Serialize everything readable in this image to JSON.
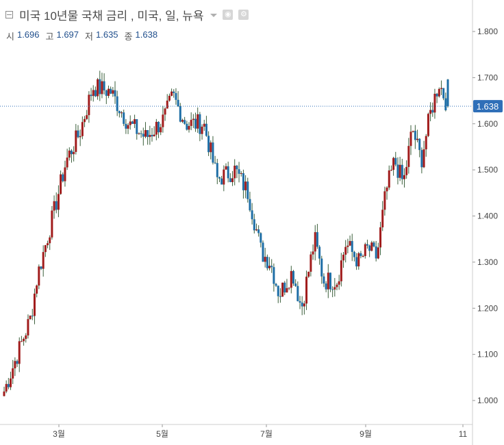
{
  "header": {
    "title": "미국 10년물 국채 금리 , 미국, 일, 뉴욕",
    "icons": [
      "collapse-icon",
      "dropdown-caret-icon",
      "eye-icon",
      "gear-icon"
    ]
  },
  "ohlc": {
    "open_label": "시",
    "open": "1.696",
    "high_label": "고",
    "high": "1.697",
    "low_label": "저",
    "low": "1.635",
    "close_label": "종",
    "close": "1.638"
  },
  "colors": {
    "up": "#a11c1c",
    "down": "#1e6ea6",
    "wick": "#3a5e3a",
    "last_price": "#2f6fb8",
    "axis": "#cccccc"
  },
  "chart_data": {
    "type": "candlestick",
    "title": "미국 10년물 국채 금리 , 미국, 일, 뉴욕",
    "xlabel": "",
    "ylabel": "",
    "x_tick_labels": [
      "3월",
      "5월",
      "7월",
      "9월",
      "11"
    ],
    "y_tick_labels": [
      "1.000",
      "1.100",
      "1.200",
      "1.300",
      "1.400",
      "1.500",
      "1.600",
      "1.700",
      "1.800"
    ],
    "y_ticks": [
      1.0,
      1.1,
      1.2,
      1.3,
      1.4,
      1.5,
      1.6,
      1.7,
      1.8
    ],
    "ylim": [
      0.95,
      1.83
    ],
    "last_price": 1.638,
    "last_price_label": "1.638",
    "grid": false,
    "ohlc_keypoints": [
      {
        "t": 0,
        "v": 1.02
      },
      {
        "t": 0.03,
        "v": 1.1
      },
      {
        "t": 0.06,
        "v": 1.18
      },
      {
        "t": 0.075,
        "v": 1.27
      },
      {
        "t": 0.11,
        "v": 1.4
      },
      {
        "t": 0.14,
        "v": 1.52
      },
      {
        "t": 0.17,
        "v": 1.58
      },
      {
        "t": 0.2,
        "v": 1.68
      },
      {
        "t": 0.24,
        "v": 1.67
      },
      {
        "t": 0.28,
        "v": 1.6
      },
      {
        "t": 0.32,
        "v": 1.57
      },
      {
        "t": 0.36,
        "v": 1.61
      },
      {
        "t": 0.38,
        "v": 1.66
      },
      {
        "t": 0.41,
        "v": 1.6
      },
      {
        "t": 0.45,
        "v": 1.6
      },
      {
        "t": 0.48,
        "v": 1.48
      },
      {
        "t": 0.52,
        "v": 1.5
      },
      {
        "t": 0.55,
        "v": 1.45
      },
      {
        "t": 0.58,
        "v": 1.32
      },
      {
        "t": 0.6,
        "v": 1.3
      },
      {
        "t": 0.62,
        "v": 1.23
      },
      {
        "t": 0.65,
        "v": 1.28
      },
      {
        "t": 0.67,
        "v": 1.2
      },
      {
        "t": 0.7,
        "v": 1.35
      },
      {
        "t": 0.72,
        "v": 1.26
      },
      {
        "t": 0.75,
        "v": 1.26
      },
      {
        "t": 0.77,
        "v": 1.34
      },
      {
        "t": 0.8,
        "v": 1.3
      },
      {
        "t": 0.82,
        "v": 1.33
      },
      {
        "t": 0.84,
        "v": 1.31
      },
      {
        "t": 0.86,
        "v": 1.45
      },
      {
        "t": 0.88,
        "v": 1.52
      },
      {
        "t": 0.9,
        "v": 1.47
      },
      {
        "t": 0.92,
        "v": 1.59
      },
      {
        "t": 0.94,
        "v": 1.52
      },
      {
        "t": 0.96,
        "v": 1.62
      },
      {
        "t": 0.98,
        "v": 1.69
      },
      {
        "t": 1.0,
        "v": 1.638
      }
    ]
  }
}
